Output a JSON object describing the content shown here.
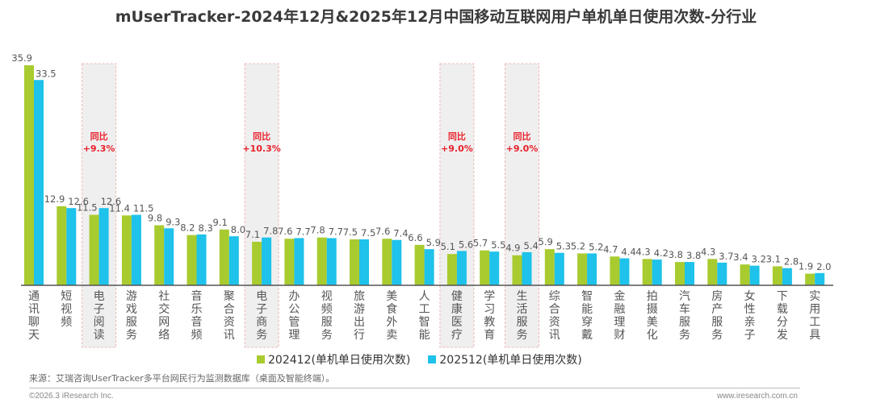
{
  "title": "mUserTracker-2024年12月&2025年12月中国移动互联网用户单机单日使用次数-分行业",
  "chart_data": {
    "type": "bar",
    "title": "mUserTracker-2024年12月&2025年12月中国移动互联网用户单机单日使用次数-分行业",
    "xlabel": "",
    "ylabel": "",
    "ylim": [
      0,
      36
    ],
    "grid": false,
    "legend_position": "bottom",
    "categories": [
      "通讯聊天",
      "短视频",
      "电子阅读",
      "游戏服务",
      "社交网络",
      "音乐音频",
      "聚合资讯",
      "电子商务",
      "办公管理",
      "视频服务",
      "旅游出行",
      "美食外卖",
      "人工智能",
      "健康医疗",
      "学习教育",
      "生活服务",
      "综合资讯",
      "智能穿戴",
      "金融理财",
      "拍摄美化",
      "汽车服务",
      "房产服务",
      "女性亲子",
      "下载分发",
      "实用工具"
    ],
    "series": [
      {
        "name": "202412(单机单日使用次数)",
        "color": "#a8cb2f",
        "values": [
          35.9,
          12.9,
          11.5,
          11.4,
          9.8,
          8.2,
          9.1,
          7.1,
          7.6,
          7.8,
          7.5,
          7.6,
          6.6,
          5.1,
          5.7,
          4.9,
          5.9,
          5.2,
          4.7,
          4.3,
          3.8,
          4.3,
          3.4,
          3.1,
          1.9
        ]
      },
      {
        "name": "202512(单机单日使用次数)",
        "color": "#1ec2ea",
        "values": [
          33.5,
          12.6,
          12.6,
          11.5,
          9.3,
          8.3,
          8.0,
          7.8,
          7.7,
          7.7,
          7.5,
          7.4,
          5.9,
          5.6,
          5.5,
          5.4,
          5.3,
          5.2,
          4.4,
          4.2,
          3.8,
          3.7,
          3.2,
          2.8,
          2.0
        ]
      }
    ],
    "annotations": [
      {
        "category": "电子阅读",
        "label": "同比",
        "value": "+9.3%"
      },
      {
        "category": "电子商务",
        "label": "同比",
        "value": "+10.3%"
      },
      {
        "category": "健康医疗",
        "label": "同比",
        "value": "+9.0%"
      },
      {
        "category": "生活服务",
        "label": "同比",
        "value": "+9.0%"
      }
    ],
    "annotation_color": "#e8202a"
  },
  "legend": {
    "items": [
      {
        "label": "202412(单机单日使用次数)",
        "color": "#a8cb2f"
      },
      {
        "label": "202512(单机单日使用次数)",
        "color": "#1ec2ea"
      }
    ]
  },
  "footer": {
    "source": "来源：艾瑞咨询UserTracker多平台网民行为监测数据库（桌面及智能终端）。",
    "copyright": "©2026.3 iResearch Inc.",
    "website": "www.iresearch.com.cn"
  }
}
